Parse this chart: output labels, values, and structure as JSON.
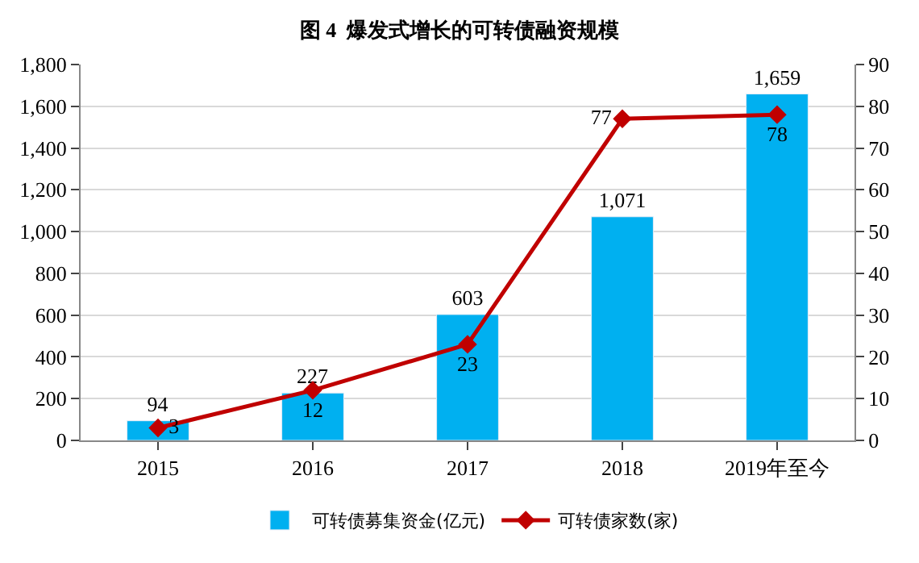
{
  "chart_data": {
    "type": "bar",
    "title": "图 4  爆发式增长的可转债融资规模",
    "categories": [
      "2015",
      "2016",
      "2017",
      "2018",
      "2019年至今"
    ],
    "series": [
      {
        "name": "可转债募集资金(亿元)",
        "color": "#00b0f0",
        "values": [
          94,
          227,
          603,
          1071,
          1659
        ],
        "value_labels": [
          "94",
          "227",
          "603",
          "1,071",
          "1,659"
        ]
      },
      {
        "name": "可转债家数(家)",
        "type": "line",
        "axis": "y2",
        "color": "#c00000",
        "marker": "diamond",
        "values": [
          3,
          12,
          23,
          77,
          78
        ],
        "value_labels": [
          "3",
          "12",
          "23",
          "77",
          "78"
        ]
      }
    ],
    "ylim": [
      0,
      1800
    ],
    "yticks": [
      0,
      {
        "value": 200,
        "label": "200"
      },
      {
        "value": 400,
        "label": "400"
      },
      {
        "value": 600,
        "label": "600"
      },
      {
        "value": 800,
        "label": "800"
      },
      {
        "value": 1000,
        "label": "1,000"
      },
      {
        "value": 1200,
        "label": "1,200"
      },
      {
        "value": 1400,
        "label": "1,400"
      },
      {
        "value": 1600,
        "label": "1,600"
      },
      {
        "value": 1800,
        "label": "1,800"
      }
    ],
    "y2lim": [
      0,
      90
    ],
    "y2ticks": [
      0,
      10,
      20,
      30,
      40,
      50,
      60,
      70,
      80,
      90
    ],
    "grid": "y",
    "legend": "bottom"
  }
}
